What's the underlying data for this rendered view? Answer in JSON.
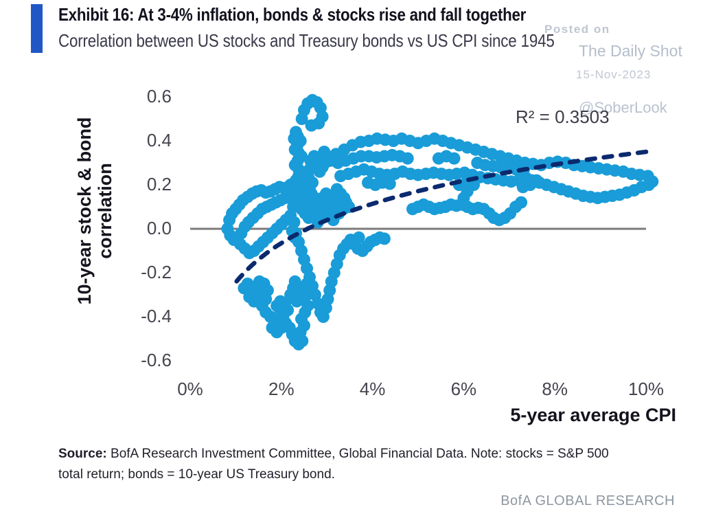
{
  "header": {
    "exhibit_title": "Exhibit 16: At 3-4% inflation, bonds & stocks rise and fall together",
    "subtitle": "Correlation between US stocks and Treasury bonds vs US CPI since 1945",
    "accent_color": "#2157c4"
  },
  "watermark": {
    "line1": "Posted on",
    "line2": "The Daily Shot",
    "line3": "15-Nov-2023",
    "line4": "@SoberLook"
  },
  "footer": {
    "source_label": "Source:",
    "source_line1": " BofA Research Investment Committee, Global Financial Data. Note: stocks = S&P 500",
    "source_line2": "total return; bonds = 10-year US Treasury bond.",
    "brand": "BofA GLOBAL RESEARCH"
  },
  "chart_data": {
    "type": "scatter",
    "xlabel": "5-year average CPI",
    "ylabel": "10-year stock & bond correlation",
    "ylabel_lines": [
      "10-year stock & bond",
      "correlation"
    ],
    "annotation": "R² = 0.3503",
    "r_squared": 0.3503,
    "x_ticks": [
      "0%",
      "2%",
      "4%",
      "6%",
      "8%",
      "10%"
    ],
    "x_tick_values": [
      0,
      2,
      4,
      6,
      8,
      10
    ],
    "y_ticks": [
      "0.6",
      "0.4",
      "0.2",
      "0.0",
      "-0.2",
      "-0.4",
      "-0.6"
    ],
    "y_tick_values": [
      0.6,
      0.4,
      0.2,
      0.0,
      -0.2,
      -0.4,
      -0.6
    ],
    "xlim": [
      0,
      10.3
    ],
    "ylim": [
      -0.65,
      0.65
    ],
    "grid": false,
    "point_color": "#199cd8",
    "trend_color": "#0b2a6e",
    "zero_line_color": "#7b7b7b",
    "ref_line_y": 0.0,
    "trendline": {
      "type": "logarithmic",
      "a": 0.258,
      "b": -0.244,
      "x_start": 1.02,
      "x_end": 10.08
    },
    "points": [
      [
        2.45,
        0.5
      ],
      [
        2.5,
        0.54
      ],
      [
        2.58,
        0.57
      ],
      [
        2.68,
        0.585
      ],
      [
        2.78,
        0.575
      ],
      [
        2.86,
        0.55
      ],
      [
        2.9,
        0.51
      ],
      [
        2.82,
        0.48
      ],
      [
        2.66,
        0.47
      ],
      [
        2.32,
        0.44
      ],
      [
        2.28,
        0.41
      ],
      [
        2.36,
        0.42
      ],
      [
        2.42,
        0.4
      ],
      [
        2.35,
        0.38
      ],
      [
        2.3,
        0.36
      ],
      [
        2.38,
        0.345
      ],
      [
        2.44,
        0.33
      ],
      [
        2.36,
        0.31
      ],
      [
        2.3,
        0.29
      ],
      [
        2.38,
        0.27
      ],
      [
        2.46,
        0.255
      ],
      [
        2.38,
        0.24
      ],
      [
        2.32,
        0.22
      ],
      [
        2.4,
        0.2
      ],
      [
        2.48,
        0.185
      ],
      [
        2.56,
        0.17
      ],
      [
        2.62,
        0.19
      ],
      [
        2.68,
        0.21
      ],
      [
        2.6,
        0.23
      ],
      [
        2.54,
        0.25
      ],
      [
        2.62,
        0.27
      ],
      [
        2.7,
        0.29
      ],
      [
        2.64,
        0.31
      ],
      [
        2.72,
        0.33
      ],
      [
        2.8,
        0.31
      ],
      [
        2.76,
        0.28
      ],
      [
        2.84,
        0.26
      ],
      [
        2.9,
        0.28
      ],
      [
        2.96,
        0.3
      ],
      [
        2.88,
        0.33
      ],
      [
        2.94,
        0.35
      ],
      [
        3.02,
        0.33
      ],
      [
        3.08,
        0.31
      ],
      [
        2.26,
        0.1
      ],
      [
        2.3,
        0.13
      ],
      [
        2.36,
        0.16
      ],
      [
        2.3,
        0.18
      ],
      [
        2.24,
        0.155
      ],
      [
        2.42,
        0.14
      ],
      [
        2.48,
        0.12
      ],
      [
        2.44,
        0.09
      ],
      [
        2.52,
        0.07
      ],
      [
        2.6,
        0.05
      ],
      [
        2.56,
        0.09
      ],
      [
        2.64,
        0.12
      ],
      [
        2.58,
        0.145
      ],
      [
        2.66,
        0.16
      ],
      [
        2.74,
        0.14
      ],
      [
        2.7,
        0.11
      ],
      [
        2.78,
        0.09
      ],
      [
        2.72,
        0.06
      ],
      [
        2.8,
        0.03
      ],
      [
        2.88,
        0.05
      ],
      [
        2.86,
        0.09
      ],
      [
        2.94,
        0.11
      ],
      [
        2.9,
        0.14
      ],
      [
        2.98,
        0.16
      ],
      [
        3.06,
        0.14
      ],
      [
        3.02,
        0.11
      ],
      [
        3.1,
        0.09
      ],
      [
        3.06,
        0.06
      ],
      [
        3.14,
        0.04
      ],
      [
        3.2,
        0.07
      ],
      [
        3.16,
        0.1
      ],
      [
        3.24,
        0.12
      ],
      [
        3.3,
        0.1
      ],
      [
        3.26,
        0.07
      ],
      [
        3.36,
        0.09
      ],
      [
        3.42,
        0.12
      ],
      [
        3.48,
        0.1
      ],
      [
        3.38,
        0.14
      ],
      [
        3.3,
        0.16
      ],
      [
        3.22,
        0.18
      ],
      [
        2.2,
        0.2
      ],
      [
        2.3,
        0.19
      ],
      [
        0.82,
        0.0
      ],
      [
        0.86,
        0.04
      ],
      [
        0.92,
        0.07
      ],
      [
        1.0,
        0.09
      ],
      [
        1.08,
        0.11
      ],
      [
        1.16,
        0.13
      ],
      [
        1.26,
        0.145
      ],
      [
        1.36,
        0.16
      ],
      [
        1.46,
        0.17
      ],
      [
        1.56,
        0.175
      ],
      [
        1.66,
        0.165
      ],
      [
        1.76,
        0.17
      ],
      [
        1.86,
        0.18
      ],
      [
        1.96,
        0.19
      ],
      [
        2.06,
        0.185
      ],
      [
        2.16,
        0.19
      ],
      [
        0.88,
        -0.03
      ],
      [
        0.96,
        -0.05
      ],
      [
        1.04,
        -0.04
      ],
      [
        1.12,
        -0.02
      ],
      [
        1.2,
        0.01
      ],
      [
        1.28,
        0.03
      ],
      [
        1.38,
        0.05
      ],
      [
        1.48,
        0.07
      ],
      [
        1.58,
        0.09
      ],
      [
        1.68,
        0.1
      ],
      [
        1.78,
        0.11
      ],
      [
        1.88,
        0.12
      ],
      [
        1.98,
        0.13
      ],
      [
        2.08,
        0.14
      ],
      [
        1.1,
        -0.07
      ],
      [
        1.2,
        -0.09
      ],
      [
        1.3,
        -0.11
      ],
      [
        1.4,
        -0.1
      ],
      [
        1.5,
        -0.08
      ],
      [
        1.6,
        -0.06
      ],
      [
        1.7,
        -0.04
      ],
      [
        1.8,
        -0.02
      ],
      [
        1.9,
        0.0
      ],
      [
        2.0,
        0.02
      ],
      [
        2.1,
        0.04
      ],
      [
        2.2,
        0.06
      ],
      [
        2.28,
        0.03
      ],
      [
        2.24,
        -0.01
      ],
      [
        2.3,
        -0.04
      ],
      [
        1.18,
        -0.27
      ],
      [
        1.26,
        -0.25
      ],
      [
        1.35,
        -0.27
      ],
      [
        1.3,
        -0.31
      ],
      [
        1.4,
        -0.33
      ],
      [
        1.48,
        -0.3
      ],
      [
        1.56,
        -0.27
      ],
      [
        1.52,
        -0.24
      ],
      [
        1.62,
        -0.25
      ],
      [
        1.7,
        -0.28
      ],
      [
        1.66,
        -0.32
      ],
      [
        1.58,
        -0.35
      ],
      [
        1.66,
        -0.38
      ],
      [
        1.76,
        -0.4
      ],
      [
        1.86,
        -0.42
      ],
      [
        1.8,
        -0.45
      ],
      [
        1.9,
        -0.47
      ],
      [
        2.0,
        -0.45
      ],
      [
        1.96,
        -0.42
      ],
      [
        2.04,
        -0.4
      ],
      [
        1.98,
        -0.37
      ],
      [
        1.9,
        -0.35
      ],
      [
        1.98,
        -0.33
      ],
      [
        2.08,
        -0.34
      ],
      [
        2.14,
        -0.37
      ],
      [
        2.1,
        -0.43
      ],
      [
        2.18,
        -0.45
      ],
      [
        2.24,
        -0.48
      ],
      [
        2.3,
        -0.51
      ],
      [
        2.38,
        -0.525
      ],
      [
        2.46,
        -0.51
      ],
      [
        2.42,
        -0.47
      ],
      [
        2.5,
        -0.44
      ],
      [
        2.44,
        -0.41
      ],
      [
        2.52,
        -0.38
      ],
      [
        2.58,
        -0.35
      ],
      [
        2.52,
        -0.31
      ],
      [
        2.6,
        -0.29
      ],
      [
        2.56,
        -0.25
      ],
      [
        2.64,
        -0.27
      ],
      [
        2.2,
        -0.3
      ],
      [
        2.26,
        -0.27
      ],
      [
        2.3,
        -0.24
      ],
      [
        2.36,
        -0.27
      ],
      [
        2.42,
        -0.3
      ],
      [
        2.34,
        -0.33
      ],
      [
        2.32,
        -0.02
      ],
      [
        2.38,
        -0.06
      ],
      [
        2.44,
        -0.1
      ],
      [
        2.5,
        -0.14
      ],
      [
        2.56,
        -0.18
      ],
      [
        2.62,
        -0.22
      ],
      [
        2.68,
        -0.26
      ],
      [
        2.74,
        -0.3
      ],
      [
        2.8,
        -0.34
      ],
      [
        2.86,
        -0.38
      ],
      [
        2.92,
        -0.4
      ],
      [
        2.98,
        -0.36
      ],
      [
        3.02,
        -0.32
      ],
      [
        3.06,
        -0.28
      ],
      [
        3.1,
        -0.24
      ],
      [
        3.16,
        -0.2
      ],
      [
        3.22,
        -0.16
      ],
      [
        3.28,
        -0.12
      ],
      [
        3.36,
        -0.09
      ],
      [
        3.44,
        -0.07
      ],
      [
        3.52,
        -0.05
      ],
      [
        3.6,
        -0.07
      ],
      [
        3.68,
        -0.09
      ],
      [
        3.78,
        -0.1
      ],
      [
        3.88,
        -0.08
      ],
      [
        3.96,
        -0.06
      ],
      [
        4.06,
        -0.05
      ],
      [
        4.16,
        -0.04
      ],
      [
        4.26,
        -0.045
      ],
      [
        3.7,
        -0.04
      ],
      [
        4.88,
        0.09
      ],
      [
        5.0,
        0.1
      ],
      [
        5.12,
        0.11
      ],
      [
        5.24,
        0.1
      ],
      [
        5.36,
        0.09
      ],
      [
        5.48,
        0.095
      ],
      [
        5.6,
        0.1
      ],
      [
        5.72,
        0.11
      ],
      [
        5.84,
        0.105
      ],
      [
        5.96,
        0.11
      ],
      [
        6.08,
        0.1
      ],
      [
        6.2,
        0.09
      ],
      [
        6.32,
        0.095
      ],
      [
        6.44,
        0.09
      ],
      [
        6.56,
        0.07
      ],
      [
        6.66,
        0.05
      ],
      [
        6.78,
        0.04
      ],
      [
        6.9,
        0.05
      ],
      [
        7.02,
        0.07
      ],
      [
        7.14,
        0.1
      ],
      [
        7.26,
        0.12
      ],
      [
        6.0,
        0.14
      ],
      [
        6.08,
        0.17
      ],
      [
        6.02,
        0.2
      ],
      [
        3.2,
        0.34
      ],
      [
        3.38,
        0.36
      ],
      [
        3.56,
        0.38
      ],
      [
        3.74,
        0.395
      ],
      [
        3.92,
        0.4
      ],
      [
        4.1,
        0.41
      ],
      [
        4.28,
        0.405
      ],
      [
        4.46,
        0.4
      ],
      [
        4.64,
        0.41
      ],
      [
        4.82,
        0.4
      ],
      [
        5.0,
        0.39
      ],
      [
        5.18,
        0.4
      ],
      [
        5.36,
        0.41
      ],
      [
        5.54,
        0.4
      ],
      [
        5.72,
        0.39
      ],
      [
        5.9,
        0.38
      ],
      [
        6.08,
        0.37
      ],
      [
        6.26,
        0.36
      ],
      [
        6.44,
        0.35
      ],
      [
        6.62,
        0.34
      ],
      [
        6.8,
        0.33
      ],
      [
        6.98,
        0.32
      ],
      [
        7.16,
        0.31
      ],
      [
        3.24,
        0.3
      ],
      [
        3.41,
        0.31
      ],
      [
        3.58,
        0.32
      ],
      [
        3.75,
        0.33
      ],
      [
        3.92,
        0.33
      ],
      [
        4.09,
        0.325
      ],
      [
        4.26,
        0.33
      ],
      [
        4.43,
        0.335
      ],
      [
        4.6,
        0.33
      ],
      [
        4.77,
        0.32
      ],
      [
        5.45,
        0.32
      ],
      [
        5.62,
        0.33
      ],
      [
        5.79,
        0.32
      ],
      [
        6.3,
        0.3
      ],
      [
        6.47,
        0.29
      ],
      [
        6.64,
        0.285
      ],
      [
        6.81,
        0.28
      ],
      [
        6.98,
        0.275
      ],
      [
        7.15,
        0.27
      ],
      [
        7.32,
        0.27
      ],
      [
        3.3,
        0.24
      ],
      [
        3.47,
        0.25
      ],
      [
        3.64,
        0.26
      ],
      [
        3.81,
        0.27
      ],
      [
        3.98,
        0.26
      ],
      [
        4.15,
        0.25
      ],
      [
        4.32,
        0.245
      ],
      [
        4.49,
        0.25
      ],
      [
        4.66,
        0.26
      ],
      [
        4.83,
        0.25
      ],
      [
        5.0,
        0.245
      ],
      [
        5.17,
        0.25
      ],
      [
        5.34,
        0.255
      ],
      [
        5.51,
        0.25
      ],
      [
        5.68,
        0.245
      ],
      [
        5.85,
        0.25
      ],
      [
        6.02,
        0.255
      ],
      [
        6.19,
        0.245
      ],
      [
        6.36,
        0.235
      ],
      [
        6.53,
        0.23
      ],
      [
        6.7,
        0.225
      ],
      [
        6.87,
        0.22
      ],
      [
        7.04,
        0.215
      ],
      [
        7.21,
        0.22
      ],
      [
        7.38,
        0.23
      ],
      [
        3.9,
        0.21
      ],
      [
        4.06,
        0.2
      ],
      [
        4.22,
        0.21
      ],
      [
        4.38,
        0.205
      ],
      [
        5.9,
        0.2
      ],
      [
        6.06,
        0.21
      ],
      [
        6.22,
        0.2
      ],
      [
        7.3,
        0.19
      ],
      [
        7.46,
        0.2
      ],
      [
        7.6,
        0.22
      ],
      [
        7.34,
        0.3
      ],
      [
        7.52,
        0.295
      ],
      [
        7.7,
        0.29
      ],
      [
        7.88,
        0.3
      ],
      [
        8.06,
        0.305
      ],
      [
        8.24,
        0.3
      ],
      [
        8.42,
        0.29
      ],
      [
        8.6,
        0.285
      ],
      [
        8.78,
        0.28
      ],
      [
        8.96,
        0.275
      ],
      [
        9.14,
        0.27
      ],
      [
        9.32,
        0.265
      ],
      [
        9.5,
        0.26
      ],
      [
        9.68,
        0.25
      ],
      [
        9.86,
        0.245
      ],
      [
        10.04,
        0.24
      ],
      [
        7.5,
        0.22
      ],
      [
        7.66,
        0.21
      ],
      [
        7.82,
        0.2
      ],
      [
        7.98,
        0.19
      ],
      [
        8.14,
        0.18
      ],
      [
        8.3,
        0.17
      ],
      [
        8.46,
        0.16
      ],
      [
        8.62,
        0.15
      ],
      [
        8.78,
        0.145
      ],
      [
        8.94,
        0.14
      ],
      [
        9.1,
        0.145
      ],
      [
        9.26,
        0.15
      ],
      [
        9.42,
        0.155
      ],
      [
        9.58,
        0.165
      ],
      [
        9.74,
        0.175
      ],
      [
        9.9,
        0.19
      ],
      [
        10.06,
        0.2
      ],
      [
        10.14,
        0.215
      ]
    ]
  }
}
